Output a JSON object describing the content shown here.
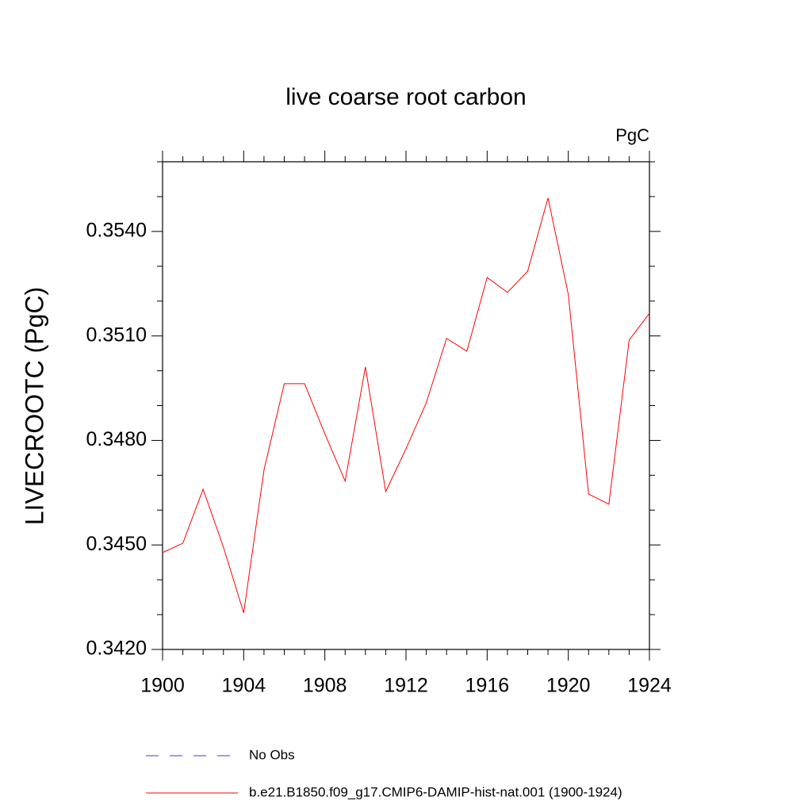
{
  "chart_data": {
    "type": "line",
    "title": "live coarse root carbon",
    "units": "PgC",
    "y_label": "LIVECROOTC  (PgC)",
    "x": [
      1900,
      1901,
      1902,
      1903,
      1904,
      1905,
      1906,
      1907,
      1908,
      1909,
      1910,
      1911,
      1912,
      1913,
      1914,
      1915,
      1916,
      1917,
      1918,
      1919,
      1920,
      1921,
      1922,
      1923,
      1924
    ],
    "series": [
      {
        "name": "No Obs",
        "color": "#3b3bd6",
        "dash": true,
        "values": [
          null,
          null,
          null,
          null,
          null,
          null,
          null,
          null,
          null,
          null,
          null,
          null,
          null,
          null,
          null,
          null,
          null,
          null,
          null,
          null,
          null,
          null,
          null,
          null,
          null
        ]
      },
      {
        "name": "b.e21.B1850.f09_g17.CMIP6-DAMIP-hist-nat.001 (1900-1924)",
        "color": "#ff0000",
        "dash": false,
        "values": [
          0.34478,
          0.34505,
          0.3466,
          0.34494,
          0.34305,
          0.34715,
          0.34963,
          0.34963,
          0.34819,
          0.34683,
          0.35011,
          0.34653,
          0.34776,
          0.34908,
          0.35093,
          0.35056,
          0.35268,
          0.35225,
          0.35286,
          0.35496,
          0.3522,
          0.34646,
          0.34617,
          0.35088,
          0.35165
        ]
      }
    ],
    "xlim": [
      1900,
      1924
    ],
    "xticks": [
      1900,
      1904,
      1908,
      1912,
      1916,
      1920,
      1924
    ],
    "xminorticks": [
      1901,
      1902,
      1903,
      1905,
      1906,
      1907,
      1909,
      1910,
      1911,
      1913,
      1914,
      1915,
      1917,
      1918,
      1919,
      1921,
      1922,
      1923
    ],
    "ylim": [
      0.342,
      0.356
    ],
    "yticks": [
      {
        "value": 0.342,
        "label": "0.3420"
      },
      {
        "value": 0.345,
        "label": "0.3450"
      },
      {
        "value": 0.348,
        "label": "0.3480"
      },
      {
        "value": 0.351,
        "label": "0.3510"
      },
      {
        "value": 0.354,
        "label": "0.3540"
      }
    ],
    "yminorticks": [
      0.343,
      0.344,
      0.346,
      0.347,
      0.349,
      0.35,
      0.352,
      0.353,
      0.355,
      0.356
    ]
  }
}
